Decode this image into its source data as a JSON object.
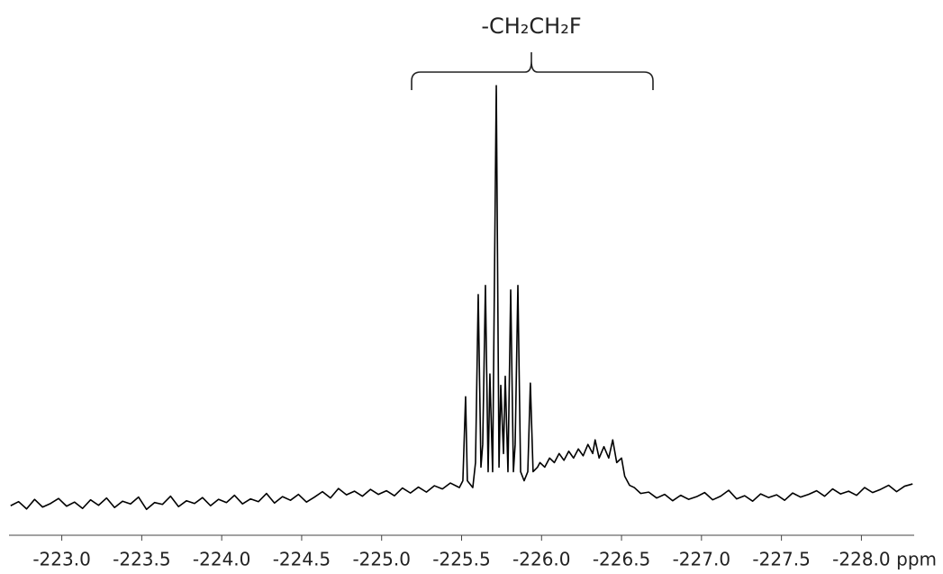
{
  "chart_data": {
    "type": "line",
    "annotation": "-CH₂CH₂F",
    "x_label": "ppm",
    "xlim": [
      -222.67,
      -228.33
    ],
    "xticks": [
      {
        "value": -223,
        "label": "-223.0"
      },
      {
        "value": -223.5,
        "label": "-223.5"
      },
      {
        "value": -224,
        "label": "-224.0"
      },
      {
        "value": -224.5,
        "label": "-224.5"
      },
      {
        "value": -225,
        "label": "-225.0"
      },
      {
        "value": -225.5,
        "label": "-225.5"
      },
      {
        "value": -226,
        "label": "-226.0"
      },
      {
        "value": -226.5,
        "label": "-226.5"
      },
      {
        "value": -227,
        "label": "-227.0"
      },
      {
        "value": -227.5,
        "label": "-227.5"
      },
      {
        "value": -228,
        "label": "-228.0"
      }
    ],
    "ylim": [
      0,
      100
    ],
    "x": [
      -222.68,
      -222.73,
      -222.78,
      -222.83,
      -222.88,
      -222.93,
      -222.98,
      -223.03,
      -223.08,
      -223.13,
      -223.18,
      -223.23,
      -223.28,
      -223.33,
      -223.38,
      -223.43,
      -223.48,
      -223.53,
      -223.58,
      -223.63,
      -223.68,
      -223.73,
      -223.78,
      -223.83,
      -223.88,
      -223.93,
      -223.98,
      -224.03,
      -224.08,
      -224.13,
      -224.18,
      -224.23,
      -224.28,
      -224.33,
      -224.38,
      -224.43,
      -224.48,
      -224.53,
      -224.58,
      -224.63,
      -224.68,
      -224.73,
      -224.78,
      -224.83,
      -224.88,
      -224.93,
      -224.98,
      -225.03,
      -225.08,
      -225.13,
      -225.18,
      -225.23,
      -225.28,
      -225.33,
      -225.38,
      -225.43,
      -225.486,
      -225.508,
      -225.525,
      -225.536,
      -225.57,
      -225.587,
      -225.604,
      -225.621,
      -225.632,
      -225.649,
      -225.666,
      -225.677,
      -225.694,
      -225.717,
      -225.734,
      -225.745,
      -225.762,
      -225.773,
      -225.79,
      -225.807,
      -225.824,
      -225.835,
      -225.852,
      -225.869,
      -225.891,
      -225.914,
      -225.93,
      -225.947,
      -225.975,
      -225.99,
      -226.02,
      -226.05,
      -226.08,
      -226.11,
      -226.14,
      -226.17,
      -226.2,
      -226.23,
      -226.26,
      -226.29,
      -226.32,
      -226.335,
      -226.36,
      -226.39,
      -226.42,
      -226.445,
      -226.47,
      -226.5,
      -226.52,
      -226.55,
      -226.58,
      -226.62,
      -226.67,
      -226.72,
      -226.77,
      -226.82,
      -226.87,
      -226.92,
      -226.97,
      -227.02,
      -227.07,
      -227.12,
      -227.17,
      -227.22,
      -227.27,
      -227.32,
      -227.37,
      -227.42,
      -227.47,
      -227.52,
      -227.57,
      -227.62,
      -227.67,
      -227.72,
      -227.77,
      -227.82,
      -227.87,
      -227.92,
      -227.97,
      -228.02,
      -228.07,
      -228.12,
      -228.17,
      -228.22,
      -228.27,
      -228.32
    ],
    "series": [
      {
        "color": "#000000",
        "values": [
          6.5,
          7.4,
          5.8,
          7.9,
          6.2,
          7.0,
          8.1,
          6.4,
          7.3,
          5.9,
          7.8,
          6.6,
          8.2,
          6.1,
          7.5,
          6.9,
          8.4,
          5.7,
          7.2,
          6.8,
          8.6,
          6.3,
          7.6,
          7.0,
          8.3,
          6.5,
          7.9,
          7.2,
          8.8,
          6.9,
          8.0,
          7.4,
          9.2,
          7.1,
          8.5,
          7.7,
          9.0,
          7.3,
          8.4,
          9.6,
          8.2,
          10.3,
          8.9,
          9.7,
          8.6,
          10.1,
          9.0,
          9.8,
          8.7,
          10.4,
          9.3,
          10.6,
          9.5,
          10.9,
          10.2,
          11.5,
          10.5,
          12,
          30.5,
          12,
          10.5,
          16,
          53,
          15,
          20,
          55,
          14,
          35.5,
          14,
          99,
          15,
          33,
          18,
          35,
          14,
          54,
          14,
          20,
          55,
          14,
          12,
          14,
          33.5,
          14,
          15,
          16,
          15,
          17,
          16,
          18,
          16.5,
          18.5,
          17,
          19,
          17.5,
          20,
          18,
          21,
          17,
          19.5,
          17,
          21,
          16,
          17,
          13,
          11,
          10.5,
          9.2,
          9.5,
          8.2,
          9.0,
          7.6,
          8.8,
          7.9,
          8.5,
          9.4,
          7.8,
          8.6,
          9.9,
          8.0,
          8.7,
          7.5,
          9.1,
          8.3,
          8.9,
          7.7,
          9.3,
          8.4,
          9.0,
          9.8,
          8.6,
          10.2,
          9.1,
          9.7,
          8.8,
          10.5,
          9.4,
          10.1,
          11.0,
          9.6,
          10.8,
          11.3
        ]
      }
    ]
  }
}
